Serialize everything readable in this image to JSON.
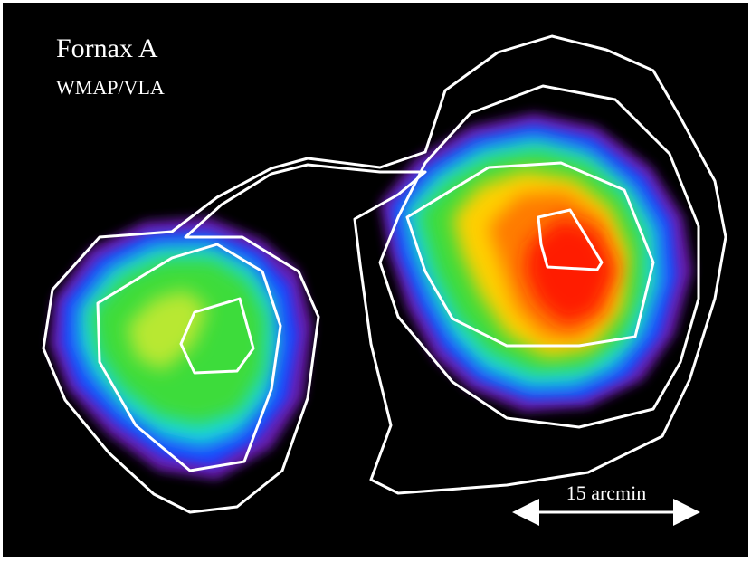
{
  "title": "Fornax A",
  "subtitle": "WMAP/VLA",
  "scale_bar": {
    "label": "15 arcmin"
  }
}
